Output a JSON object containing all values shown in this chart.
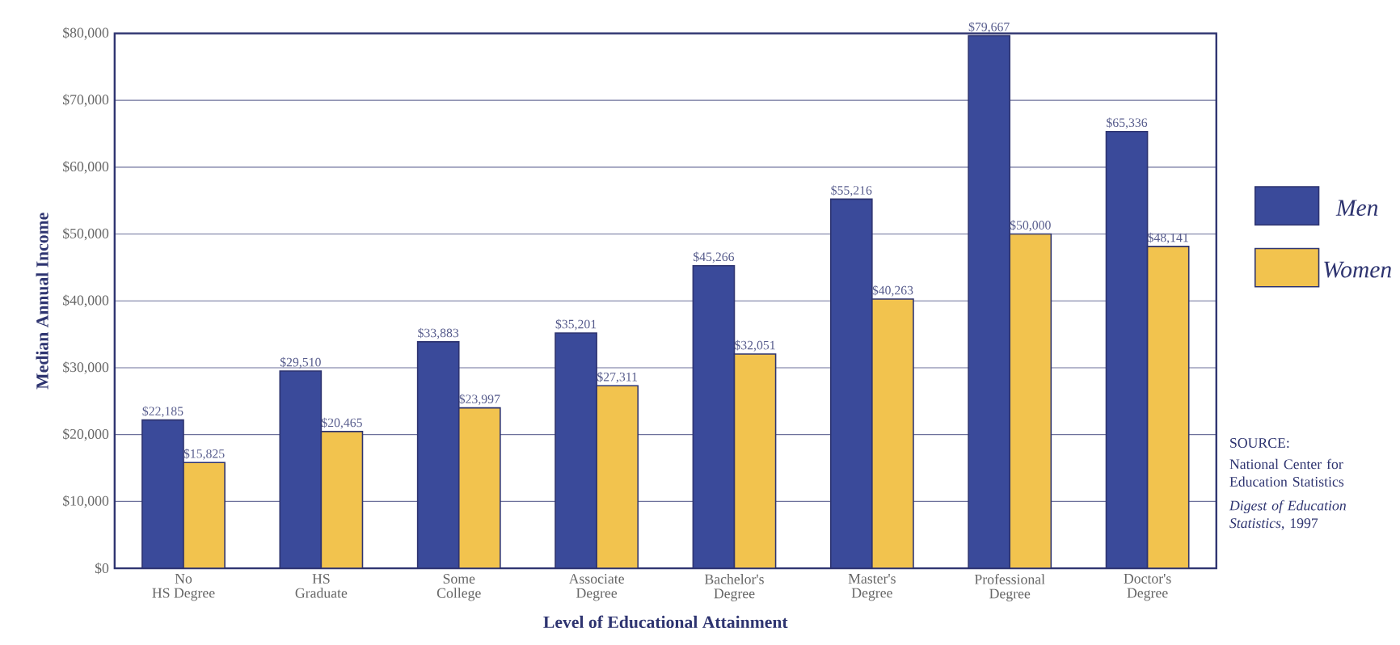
{
  "chart_data": {
    "type": "bar",
    "xlabel": "Level of Educational Attainment",
    "ylabel": "Median Annual Income",
    "categories": [
      "No\nHS Degree",
      "HS\nGraduate",
      "Some\nCollege",
      "Associate\nDegree",
      "Bachelor's\nDegree",
      "Master's\nDegree",
      "Professional\nDegree",
      "Doctor's\nDegree"
    ],
    "series": [
      {
        "name": "Men",
        "color": "#3a4a9a",
        "values": [
          22185,
          29510,
          33883,
          35201,
          45266,
          55216,
          79667,
          65336
        ],
        "value_labels": [
          "$22,185",
          "$29,510",
          "$33,883",
          "$35,201",
          "$45,266",
          "$55,216",
          "$79,667",
          "$65,336"
        ]
      },
      {
        "name": "Women",
        "color": "#f2c34e",
        "values": [
          15825,
          20465,
          23997,
          27311,
          32051,
          40263,
          50000,
          48141
        ],
        "value_labels": [
          "$15,825",
          "$20,465",
          "$23,997",
          "$27,311",
          "$32,051",
          "$40,263",
          "$50,000",
          "$48,141"
        ]
      }
    ],
    "ylim": [
      0,
      80000
    ],
    "yticks": [
      {
        "value": 0,
        "label": "$0"
      },
      {
        "value": 10000,
        "label": "$10,000"
      },
      {
        "value": 20000,
        "label": "$20,000"
      },
      {
        "value": 30000,
        "label": "$30,000"
      },
      {
        "value": 40000,
        "label": "$40,000"
      },
      {
        "value": 50000,
        "label": "$50,000"
      },
      {
        "value": 60000,
        "label": "$60,000"
      },
      {
        "value": 70000,
        "label": "$70,000"
      },
      {
        "value": 80000,
        "label": "$80,000"
      }
    ],
    "grid": "y",
    "legend": "right",
    "annotations": [
      "SOURCE:",
      "National Center for Education Statistics",
      "*Digest of Education Statistics*, 1997"
    ]
  }
}
